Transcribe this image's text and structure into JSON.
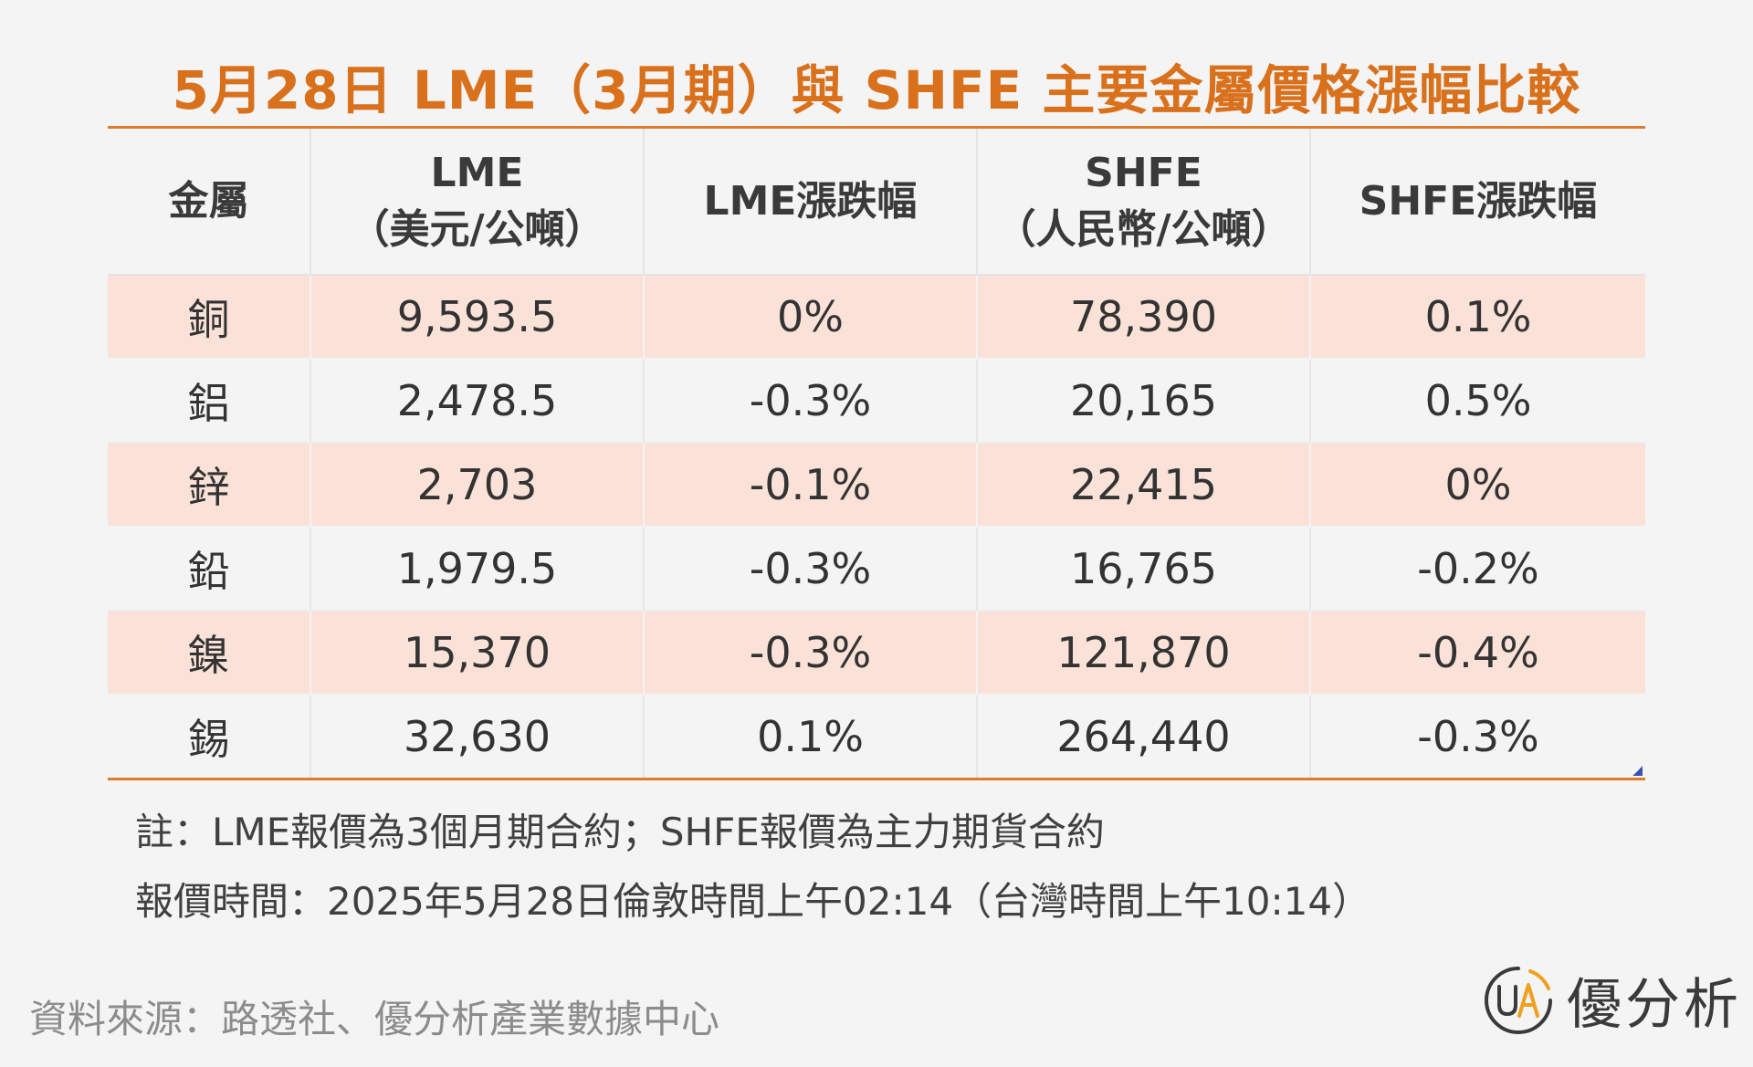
{
  "title": "5月28日 LME（3月期）與 SHFE 主要金屬價格漲幅比較",
  "table": {
    "headers": [
      {
        "line1": "金屬",
        "line2": ""
      },
      {
        "line1": "LME",
        "line2": "（美元/公噸）"
      },
      {
        "line1": "LME漲跌幅",
        "line2": ""
      },
      {
        "line1": "SHFE",
        "line2": "（人民幣/公噸）"
      },
      {
        "line1": "SHFE漲跌幅",
        "line2": ""
      }
    ],
    "rows": [
      {
        "metal": "銅",
        "lme": "9,593.5",
        "lme_change": "0%",
        "shfe": "78,390",
        "shfe_change": "0.1%"
      },
      {
        "metal": "鋁",
        "lme": "2,478.5",
        "lme_change": "-0.3%",
        "shfe": "20,165",
        "shfe_change": "0.5%"
      },
      {
        "metal": "鋅",
        "lme": "2,703",
        "lme_change": "-0.1%",
        "shfe": "22,415",
        "shfe_change": "0%"
      },
      {
        "metal": "鉛",
        "lme": "1,979.5",
        "lme_change": "-0.3%",
        "shfe": "16,765",
        "shfe_change": "-0.2%"
      },
      {
        "metal": "鎳",
        "lme": "15,370",
        "lme_change": "-0.3%",
        "shfe": "121,870",
        "shfe_change": "-0.4%"
      },
      {
        "metal": "錫",
        "lme": "32,630",
        "lme_change": "0.1%",
        "shfe": "264,440",
        "shfe_change": "-0.3%"
      }
    ]
  },
  "notes": [
    "註：LME報價為3個月期合約；SHFE報價為主力期貨合約",
    "報價時間：2025年5月28日倫敦時間上午02:14（台灣時間上午10:14）"
  ],
  "source": "資料來源：路透社、優分析產業數據中心",
  "brand": {
    "name": "優分析",
    "logo_icon": "ua-logo-icon",
    "logo_text": "UA"
  },
  "colors": {
    "title": "#d9711c",
    "rule": "#e07b2a",
    "row_shade": "#fbe2d8",
    "background": "#f4f4f4",
    "logo_accent": "#f0a020"
  }
}
